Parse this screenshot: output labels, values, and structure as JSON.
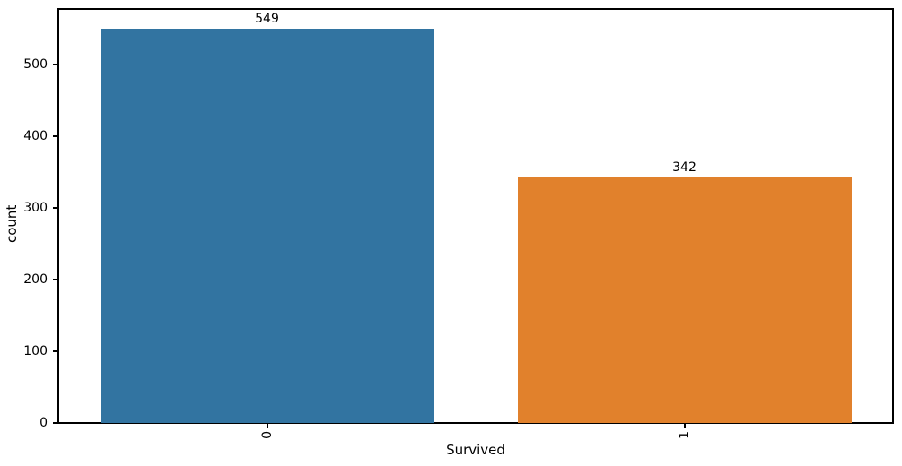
{
  "chart_data": {
    "type": "bar",
    "title": "",
    "categories": [
      "0",
      "1"
    ],
    "values": [
      549,
      342
    ],
    "bar_labels": [
      "549",
      "342"
    ],
    "bar_colors": [
      "#3274a1",
      "#e1812c"
    ],
    "xlabel": "Survived",
    "ylabel": "count",
    "ylim": [
      0,
      577
    ],
    "yticks": [
      0,
      100,
      200,
      300,
      400,
      500
    ],
    "xtick_rotation": 90,
    "grid": false,
    "legend": "none",
    "bar_relative_width": 0.8
  },
  "figure": {
    "background": "#ffffff",
    "spine_color": "#000000",
    "text_color": "#000000"
  }
}
